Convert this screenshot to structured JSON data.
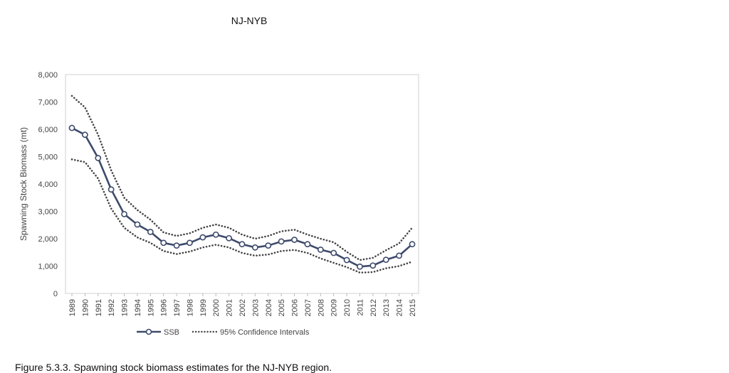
{
  "page": {
    "title": "NJ-NYB",
    "caption": "Figure 5.3.3. Spawning stock biomass estimates for the NJ-NYB region."
  },
  "chart_data": {
    "type": "line",
    "title": "NJ-NYB",
    "ylabel": "Spawning Stock Biomass (mt)",
    "xlabel": "",
    "ylim": [
      0,
      8000
    ],
    "yticks": [
      0,
      1000,
      2000,
      3000,
      4000,
      5000,
      6000,
      7000,
      8000
    ],
    "ytick_labels": [
      "0",
      "1,000",
      "2,000",
      "3,000",
      "4,000",
      "5,000",
      "6,000",
      "7,000",
      "8,000"
    ],
    "categories": [
      "1989",
      "1990",
      "1991",
      "1992",
      "1993",
      "1994",
      "1995",
      "1996",
      "1997",
      "1998",
      "1999",
      "2000",
      "2001",
      "2002",
      "2003",
      "2004",
      "2005",
      "2006",
      "2007",
      "2008",
      "2009",
      "2010",
      "2011",
      "2012",
      "2013",
      "2014",
      "2015"
    ],
    "grid": false,
    "legend_position": "bottom",
    "series": [
      {
        "name": "SSB",
        "style": "solid-markers",
        "color": "#3d4a6b",
        "values": [
          6050,
          5800,
          4950,
          3800,
          2900,
          2520,
          2250,
          1850,
          1750,
          1850,
          2050,
          2150,
          2020,
          1800,
          1680,
          1750,
          1900,
          1960,
          1800,
          1600,
          1480,
          1220,
          980,
          1020,
          1230,
          1380,
          1800
        ]
      },
      {
        "name": "95% Confidence Intervals",
        "style": "dotted",
        "color": "#444444",
        "role": "upper",
        "values": [
          7220,
          6800,
          5800,
          4500,
          3500,
          3050,
          2700,
          2230,
          2100,
          2200,
          2400,
          2520,
          2400,
          2150,
          2000,
          2100,
          2270,
          2330,
          2150,
          2000,
          1870,
          1520,
          1220,
          1300,
          1580,
          1830,
          2400
        ]
      },
      {
        "name": "",
        "style": "dotted",
        "color": "#444444",
        "role": "lower",
        "values": [
          4900,
          4800,
          4200,
          3100,
          2400,
          2050,
          1850,
          1550,
          1440,
          1530,
          1680,
          1780,
          1680,
          1480,
          1380,
          1420,
          1550,
          1590,
          1480,
          1280,
          1120,
          960,
          760,
          780,
          920,
          1000,
          1160
        ]
      }
    ]
  }
}
